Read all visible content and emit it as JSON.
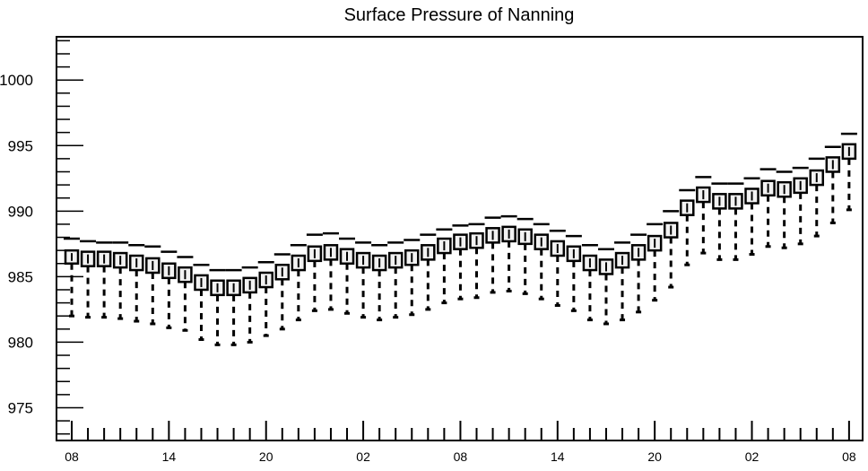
{
  "chart_data": {
    "type": "boxplot",
    "title": "Surface Pressure of Nanning",
    "xlabel": "",
    "ylabel": "",
    "ylim": [
      972.5,
      1003.3
    ],
    "yticks": [
      "975",
      "980",
      "985",
      "990",
      "995",
      "1000"
    ],
    "xtick_labels": [
      "08",
      "14",
      "20",
      "02",
      "08",
      "14",
      "20",
      "02",
      "08"
    ],
    "step_hours": 1,
    "start_label": "08",
    "series": [
      {
        "median": [
          986.5,
          986.4,
          986.4,
          986.3,
          986.1,
          985.9,
          985.5,
          985.2,
          984.6,
          984.2,
          984.2,
          984.4,
          984.8,
          985.4,
          986.1,
          986.8,
          986.9,
          986.6,
          986.3,
          986.1,
          986.3,
          986.5,
          986.9,
          987.4,
          987.7,
          987.8,
          988.2,
          988.3,
          988.1,
          987.7,
          987.2,
          986.8,
          986.1,
          985.8,
          986.3,
          986.9,
          987.6,
          988.6,
          990.3,
          991.3,
          990.8,
          990.8,
          991.2,
          991.8,
          991.7,
          992.0,
          992.6,
          993.6,
          994.6
        ],
        "box_low": [
          986.0,
          985.8,
          985.8,
          985.7,
          985.5,
          985.3,
          984.9,
          984.6,
          984.0,
          983.6,
          983.6,
          983.8,
          984.2,
          984.8,
          985.5,
          986.2,
          986.3,
          986.0,
          985.7,
          985.5,
          985.7,
          985.9,
          986.3,
          986.8,
          987.1,
          987.2,
          987.6,
          987.7,
          987.5,
          987.1,
          986.6,
          986.2,
          985.5,
          985.2,
          985.7,
          986.3,
          987.0,
          988.0,
          989.7,
          990.7,
          990.2,
          990.2,
          990.6,
          991.2,
          991.1,
          991.4,
          992.0,
          993.0,
          994.0
        ],
        "box_high": [
          987.0,
          986.9,
          986.9,
          986.8,
          986.6,
          986.4,
          986.0,
          985.7,
          985.1,
          984.7,
          984.7,
          984.9,
          985.3,
          985.9,
          986.6,
          987.3,
          987.4,
          987.1,
          986.8,
          986.6,
          986.8,
          987.0,
          987.4,
          987.9,
          988.2,
          988.3,
          988.7,
          988.8,
          988.6,
          988.2,
          987.7,
          987.3,
          986.6,
          986.3,
          986.8,
          987.4,
          988.1,
          989.1,
          990.8,
          991.8,
          991.3,
          991.3,
          991.7,
          992.3,
          992.2,
          992.5,
          993.1,
          994.1,
          995.1
        ],
        "whisker_low": [
          982.0,
          981.9,
          981.9,
          981.8,
          981.6,
          981.4,
          981.1,
          980.9,
          980.2,
          979.8,
          979.8,
          980.0,
          980.5,
          981.0,
          981.7,
          982.4,
          982.5,
          982.2,
          981.9,
          981.7,
          981.9,
          982.1,
          982.5,
          983.0,
          983.3,
          983.4,
          983.8,
          983.9,
          983.7,
          983.3,
          982.8,
          982.4,
          981.7,
          981.4,
          981.7,
          982.3,
          983.2,
          984.2,
          985.9,
          986.8,
          986.3,
          986.3,
          986.7,
          987.3,
          987.2,
          987.5,
          988.1,
          989.1,
          990.1
        ],
        "whisker_high": [
          987.9,
          987.7,
          987.6,
          987.6,
          987.4,
          987.3,
          986.9,
          986.5,
          985.9,
          985.5,
          985.5,
          985.7,
          986.1,
          986.7,
          987.4,
          988.2,
          988.3,
          987.9,
          987.6,
          987.4,
          987.6,
          987.8,
          988.2,
          988.6,
          988.9,
          989.0,
          989.5,
          989.6,
          989.4,
          989.0,
          988.5,
          988.1,
          987.4,
          987.1,
          987.6,
          988.2,
          989.0,
          990.0,
          991.6,
          992.6,
          992.1,
          992.1,
          992.5,
          993.2,
          993.0,
          993.3,
          994.0,
          994.9,
          995.9
        ]
      }
    ]
  }
}
